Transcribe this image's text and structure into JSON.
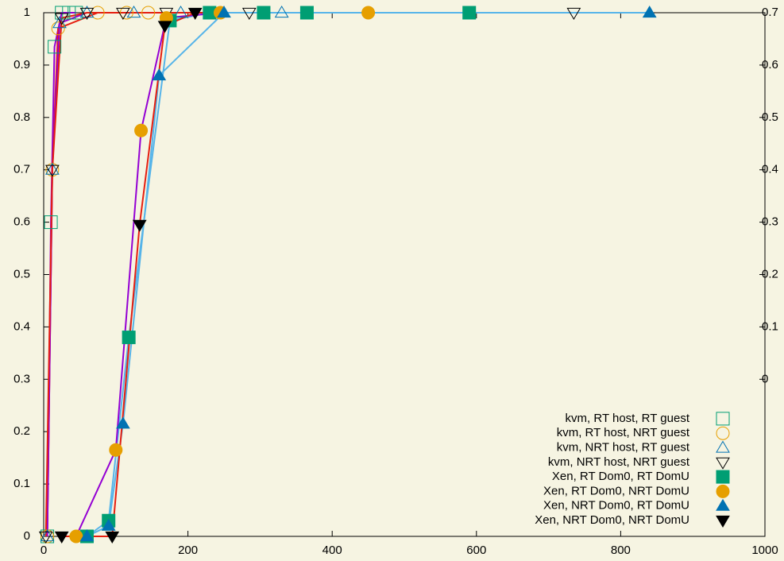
{
  "chart_data": {
    "type": "line",
    "xlim": [
      0,
      1000
    ],
    "xticks": [
      0,
      200,
      400,
      600,
      800,
      1000
    ],
    "ylim": [
      0,
      1
    ],
    "yticks": [
      0,
      0.1,
      0.2,
      0.3,
      0.4,
      0.5,
      0.6,
      0.7,
      0.8,
      0.9,
      1
    ],
    "y2lim": [
      -0.3,
      0.7
    ],
    "y2ticks": [
      0,
      0.1,
      0.2,
      0.3,
      0.4,
      0.5,
      0.6,
      0.7
    ],
    "legend": "lower right",
    "series": [
      {
        "name": "kvm, RT host, RT guest",
        "color": "#009e73",
        "line_color": "#9400d3",
        "marker": "square",
        "filled": false,
        "x": [
          5,
          10,
          15,
          25,
          35,
          45
        ],
        "values": [
          0,
          0.6,
          0.935,
          1,
          1,
          1
        ]
      },
      {
        "name": "kvm, RT host, NRT guest",
        "color": "#e69f00",
        "line_color": "#e51e10",
        "marker": "circle",
        "filled": false,
        "x": [
          5,
          12,
          20,
          75,
          115,
          145
        ],
        "values": [
          0,
          0.7,
          0.97,
          1,
          1,
          1
        ]
      },
      {
        "name": "kvm, NRT host, RT guest",
        "color": "#0072b2",
        "line_color": "#9400d3",
        "marker": "triangle",
        "filled": false,
        "x": [
          5,
          12,
          22,
          60,
          125,
          190,
          330
        ],
        "values": [
          0,
          0.7,
          0.98,
          1,
          1,
          1,
          1
        ]
      },
      {
        "name": "kvm, NRT host, NRT guest",
        "color": "#000000",
        "line_color": "#e51e10",
        "marker": "triangle-down",
        "filled": false,
        "x": [
          3,
          12,
          25,
          60,
          110,
          170,
          285,
          735
        ],
        "values": [
          0,
          0.7,
          0.99,
          1,
          1,
          1,
          1,
          1
        ]
      },
      {
        "name": "Xen, RT Dom0, RT DomU",
        "color": "#009e73",
        "line_color": "#56b4e9",
        "marker": "square",
        "filled": true,
        "x": [
          60,
          90,
          118,
          175,
          230,
          305,
          365,
          590
        ],
        "values": [
          0,
          0.03,
          0.38,
          0.985,
          1,
          1,
          1,
          1
        ]
      },
      {
        "name": "Xen, RT Dom0, NRT DomU",
        "color": "#e69f00",
        "line_color": "#9400d3",
        "marker": "circle",
        "filled": true,
        "x": [
          45,
          100,
          135,
          170,
          245,
          450
        ],
        "values": [
          0,
          0.165,
          0.775,
          0.99,
          1,
          1
        ]
      },
      {
        "name": "Xen, NRT Dom0, RT DomU",
        "color": "#0072b2",
        "line_color": "#56b4e9",
        "marker": "triangle",
        "filled": true,
        "x": [
          60,
          90,
          110,
          160,
          250,
          840
        ],
        "values": [
          0,
          0.02,
          0.215,
          0.88,
          1,
          1
        ]
      },
      {
        "name": "Xen, NRT Dom0, NRT DomU",
        "color": "#000000",
        "line_color": "#e51e10",
        "marker": "triangle-down",
        "filled": true,
        "x": [
          25,
          95,
          133,
          168,
          210
        ],
        "values": [
          0,
          0,
          0.595,
          0.975,
          1
        ]
      }
    ]
  }
}
